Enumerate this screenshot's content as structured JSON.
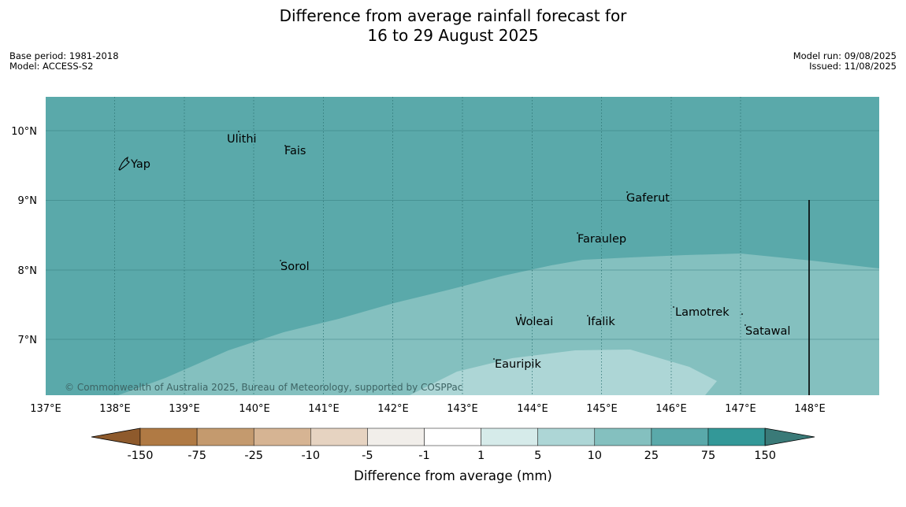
{
  "title": {
    "line1": "Difference from average rainfall forecast for",
    "line2": "16 to 29 August 2025"
  },
  "meta": {
    "base_period": "Base period: 1981-2018",
    "model": "Model: ACCESS-S2",
    "model_run": "Model run: 09/08/2025",
    "issued": "Issued: 11/08/2025"
  },
  "map": {
    "lat_labels": [
      "10°N",
      "9°N",
      "8°N",
      "7°N"
    ],
    "lon_labels": [
      "137°E",
      "138°E",
      "139°E",
      "140°E",
      "141°E",
      "142°E",
      "143°E",
      "144°E",
      "145°E",
      "146°E",
      "147°E",
      "148°E"
    ],
    "places": [
      {
        "name": "Yap"
      },
      {
        "name": "Ulithi"
      },
      {
        "name": "Fais"
      },
      {
        "name": "Gaferut"
      },
      {
        "name": "Faraulep"
      },
      {
        "name": "Sorol"
      },
      {
        "name": "Lamotrek"
      },
      {
        "name": "Woleai"
      },
      {
        "name": "Ifalik"
      },
      {
        "name": "Satawal"
      },
      {
        "name": "Eauripik"
      }
    ],
    "copyright": "© Commonwealth of Australia 2025, Bureau of Meteorology, supported by COSPPac"
  },
  "legend": {
    "ticks": [
      "-150",
      "-75",
      "-25",
      "-10",
      "-5",
      "-1",
      "1",
      "5",
      "10",
      "25",
      "75",
      "150"
    ],
    "colors": [
      "#8e5a2c",
      "#b07a44",
      "#c49a6e",
      "#d6b493",
      "#e6d3c1",
      "#f1eeea",
      "#ffffff",
      "#d6ebea",
      "#add6d6",
      "#84c0bf",
      "#5aa9aa",
      "#339898",
      "#3a7a78"
    ],
    "label": "Difference from average (mm)"
  }
}
